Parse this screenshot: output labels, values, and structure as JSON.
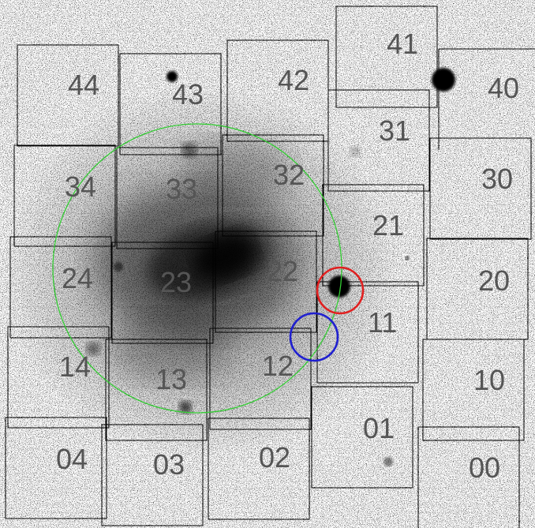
{
  "image": {
    "subject": "Negative greyscale astronomical image of a galaxy with a grid of overlaid field boxes",
    "colors": {
      "background": "#ffffff",
      "box_stroke": "#000000",
      "label_text": "#555555",
      "aperture_ring": "#33cc33",
      "marker_red": "#e02020",
      "marker_blue": "#2020d0"
    }
  },
  "fields": [
    {
      "id": "41",
      "label": "41"
    },
    {
      "id": "40",
      "label": "40"
    },
    {
      "id": "44",
      "label": "44"
    },
    {
      "id": "43",
      "label": "43"
    },
    {
      "id": "42",
      "label": "42"
    },
    {
      "id": "31",
      "label": "31"
    },
    {
      "id": "30",
      "label": "30"
    },
    {
      "id": "34",
      "label": "34"
    },
    {
      "id": "33",
      "label": "33"
    },
    {
      "id": "32",
      "label": "32"
    },
    {
      "id": "21",
      "label": "21"
    },
    {
      "id": "24",
      "label": "24"
    },
    {
      "id": "23",
      "label": "23"
    },
    {
      "id": "22",
      "label": "22"
    },
    {
      "id": "20",
      "label": "20"
    },
    {
      "id": "11",
      "label": "11"
    },
    {
      "id": "14",
      "label": "14"
    },
    {
      "id": "13",
      "label": "13"
    },
    {
      "id": "12",
      "label": "12"
    },
    {
      "id": "10",
      "label": "10"
    },
    {
      "id": "01",
      "label": "01"
    },
    {
      "id": "04",
      "label": "04"
    },
    {
      "id": "03",
      "label": "03"
    },
    {
      "id": "02",
      "label": "02"
    },
    {
      "id": "00",
      "label": "00"
    }
  ],
  "markers": [
    {
      "id": "green-aperture",
      "color_name": "green"
    },
    {
      "id": "red-circle",
      "color_name": "red"
    },
    {
      "id": "blue-circle",
      "color_name": "blue"
    }
  ]
}
